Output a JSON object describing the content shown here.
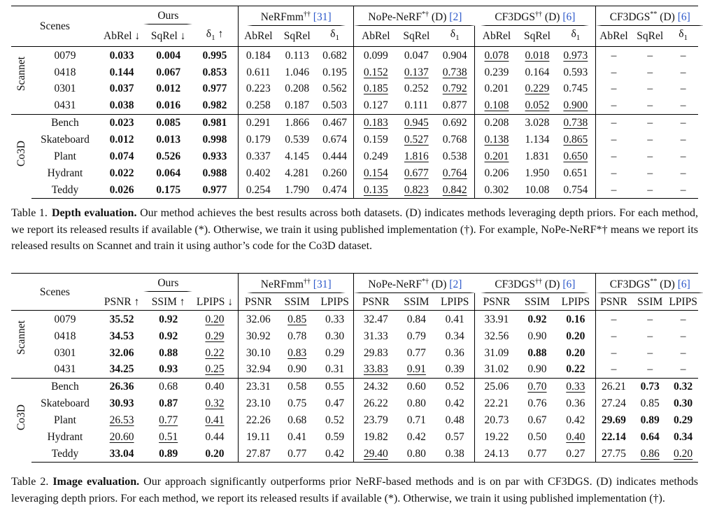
{
  "table1": {
    "scenes_header": "Scenes",
    "methods": [
      {
        "name": "Ours",
        "sup": "",
        "suffix": "",
        "ref": "",
        "bold_name": false
      },
      {
        "name": "NeRFmm",
        "sup": "††",
        "suffix": "",
        "ref": "[31]"
      },
      {
        "name": "NoPe-NeRF",
        "sup": "*†",
        "suffix": "(D)",
        "ref": "[2]"
      },
      {
        "name": "CF3DGS",
        "sup": "††",
        "suffix": "(D)",
        "ref": "[6]"
      },
      {
        "name": "CF3DGS",
        "sup": "**",
        "suffix": "(D)",
        "ref": "[6]"
      }
    ],
    "ours_metrics": [
      "AbRel ↓",
      "SqRel ↓",
      "δ1 ↑"
    ],
    "metrics": [
      "AbRel",
      "SqRel",
      "δ1"
    ],
    "groups": [
      "Scannet",
      "Co3D"
    ],
    "rows": [
      {
        "group": 0,
        "scene": "0079",
        "cells": [
          "0.033",
          "0.004",
          "0.995",
          "0.184",
          "0.113",
          "0.682",
          "0.099",
          "0.047",
          "0.904",
          "0.078",
          "0.018",
          "0.973",
          "–",
          "–",
          "–"
        ],
        "bold": [
          0,
          1,
          2
        ],
        "under": [
          9,
          10,
          11
        ]
      },
      {
        "group": 0,
        "scene": "0418",
        "cells": [
          "0.144",
          "0.067",
          "0.853",
          "0.611",
          "1.046",
          "0.195",
          "0.152",
          "0.137",
          "0.738",
          "0.239",
          "0.164",
          "0.593",
          "–",
          "–",
          "–"
        ],
        "bold": [
          0,
          1,
          2
        ],
        "under": [
          6,
          7,
          8
        ]
      },
      {
        "group": 0,
        "scene": "0301",
        "cells": [
          "0.037",
          "0.012",
          "0.977",
          "0.223",
          "0.208",
          "0.562",
          "0.185",
          "0.252",
          "0.792",
          "0.201",
          "0.229",
          "0.745",
          "–",
          "–",
          "–"
        ],
        "bold": [
          0,
          1,
          2
        ],
        "under": [
          6,
          8,
          10
        ]
      },
      {
        "group": 0,
        "scene": "0431",
        "cells": [
          "0.038",
          "0.016",
          "0.982",
          "0.258",
          "0.187",
          "0.503",
          "0.127",
          "0.111",
          "0.877",
          "0.108",
          "0.052",
          "0.900",
          "–",
          "–",
          "–"
        ],
        "bold": [
          0,
          1,
          2
        ],
        "under": [
          9,
          10,
          11
        ]
      },
      {
        "group": 1,
        "scene": "Bench",
        "cells": [
          "0.023",
          "0.085",
          "0.981",
          "0.291",
          "1.866",
          "0.467",
          "0.183",
          "0.945",
          "0.692",
          "0.208",
          "3.028",
          "0.738",
          "–",
          "–",
          "–"
        ],
        "bold": [
          0,
          1,
          2
        ],
        "under": [
          6,
          7,
          11
        ]
      },
      {
        "group": 1,
        "scene": "Skateboard",
        "cells": [
          "0.012",
          "0.013",
          "0.998",
          "0.179",
          "0.539",
          "0.674",
          "0.159",
          "0.527",
          "0.768",
          "0.138",
          "1.134",
          "0.865",
          "–",
          "–",
          "–"
        ],
        "bold": [
          0,
          1,
          2
        ],
        "under": [
          7,
          9,
          11
        ]
      },
      {
        "group": 1,
        "scene": "Plant",
        "cells": [
          "0.074",
          "0.526",
          "0.933",
          "0.337",
          "4.145",
          "0.444",
          "0.249",
          "1.816",
          "0.538",
          "0.201",
          "1.831",
          "0.650",
          "–",
          "–",
          "–"
        ],
        "bold": [
          0,
          1,
          2
        ],
        "under": [
          7,
          9,
          11
        ]
      },
      {
        "group": 1,
        "scene": "Hydrant",
        "cells": [
          "0.022",
          "0.064",
          "0.988",
          "0.402",
          "4.281",
          "0.260",
          "0.154",
          "0.677",
          "0.764",
          "0.206",
          "1.950",
          "0.651",
          "–",
          "–",
          "–"
        ],
        "bold": [
          0,
          1,
          2
        ],
        "under": [
          6,
          7,
          8
        ]
      },
      {
        "group": 1,
        "scene": "Teddy",
        "cells": [
          "0.026",
          "0.175",
          "0.977",
          "0.254",
          "1.790",
          "0.474",
          "0.135",
          "0.823",
          "0.842",
          "0.302",
          "10.08",
          "0.754",
          "–",
          "–",
          "–"
        ],
        "bold": [
          0,
          1,
          2
        ],
        "under": [
          6,
          7,
          8
        ]
      }
    ],
    "caption_label": "Table 1.",
    "caption_title": "Depth evaluation.",
    "caption_text": "Our method achieves the best results across both datasets. (D) indicates methods leveraging depth priors. For each method, we report its released results if available (*). Otherwise, we train it using published implementation (†). For example, NoPe-NeRF*† means we report its released results on Scannet and train it using author’s code for the Co3D dataset."
  },
  "table2": {
    "scenes_header": "Scenes",
    "methods": [
      {
        "name": "Ours",
        "sup": "",
        "suffix": "",
        "ref": ""
      },
      {
        "name": "NeRFmm",
        "sup": "††",
        "suffix": "",
        "ref": "[31]"
      },
      {
        "name": "NoPe-NeRF",
        "sup": "*†",
        "suffix": "(D)",
        "ref": "[2]"
      },
      {
        "name": "CF3DGS",
        "sup": "††",
        "suffix": "(D)",
        "ref": "[6]"
      },
      {
        "name": "CF3DGS",
        "sup": "**",
        "suffix": "(D)",
        "ref": "[6]"
      }
    ],
    "ours_metrics": [
      "PSNR ↑",
      "SSIM ↑",
      "LPIPS ↓"
    ],
    "metrics": [
      "PSNR",
      "SSIM",
      "LPIPS"
    ],
    "groups": [
      "Scannet",
      "Co3D"
    ],
    "rows": [
      {
        "group": 0,
        "scene": "0079",
        "cells": [
          "35.52",
          "0.92",
          "0.20",
          "32.06",
          "0.85",
          "0.33",
          "32.47",
          "0.84",
          "0.41",
          "33.91",
          "0.92",
          "0.16",
          "–",
          "–",
          "–"
        ],
        "bold": [
          0,
          1,
          10,
          11
        ],
        "under": [
          2,
          4
        ]
      },
      {
        "group": 0,
        "scene": "0418",
        "cells": [
          "34.53",
          "0.92",
          "0.29",
          "30.92",
          "0.78",
          "0.30",
          "31.33",
          "0.79",
          "0.34",
          "32.56",
          "0.90",
          "0.20",
          "–",
          "–",
          "–"
        ],
        "bold": [
          0,
          1,
          11
        ],
        "under": [
          2
        ]
      },
      {
        "group": 0,
        "scene": "0301",
        "cells": [
          "32.06",
          "0.88",
          "0.22",
          "30.10",
          "0.83",
          "0.29",
          "29.83",
          "0.77",
          "0.36",
          "31.09",
          "0.88",
          "0.20",
          "–",
          "–",
          "–"
        ],
        "bold": [
          0,
          1,
          10,
          11
        ],
        "under": [
          2,
          4
        ]
      },
      {
        "group": 0,
        "scene": "0431",
        "cells": [
          "34.25",
          "0.93",
          "0.25",
          "32.94",
          "0.90",
          "0.31",
          "33.83",
          "0.91",
          "0.39",
          "31.02",
          "0.90",
          "0.22",
          "–",
          "–",
          "–"
        ],
        "bold": [
          0,
          1,
          11
        ],
        "under": [
          2,
          6,
          7
        ]
      },
      {
        "group": 1,
        "scene": "Bench",
        "cells": [
          "26.36",
          "0.68",
          "0.40",
          "23.31",
          "0.58",
          "0.55",
          "24.32",
          "0.60",
          "0.52",
          "25.06",
          "0.70",
          "0.33",
          "26.21",
          "0.73",
          "0.32"
        ],
        "bold": [
          0,
          13,
          14
        ],
        "under": [
          10,
          11
        ]
      },
      {
        "group": 1,
        "scene": "Skateboard",
        "cells": [
          "30.93",
          "0.87",
          "0.32",
          "23.10",
          "0.75",
          "0.47",
          "26.22",
          "0.80",
          "0.42",
          "22.21",
          "0.76",
          "0.36",
          "27.24",
          "0.85",
          "0.30"
        ],
        "bold": [
          0,
          1,
          14
        ],
        "under": [
          2
        ]
      },
      {
        "group": 1,
        "scene": "Plant",
        "cells": [
          "26.53",
          "0.77",
          "0.41",
          "22.26",
          "0.68",
          "0.52",
          "23.79",
          "0.71",
          "0.48",
          "20.73",
          "0.67",
          "0.42",
          "29.69",
          "0.89",
          "0.29"
        ],
        "bold": [
          12,
          13,
          14
        ],
        "under": [
          0,
          1,
          2
        ]
      },
      {
        "group": 1,
        "scene": "Hydrant",
        "cells": [
          "20.60",
          "0.51",
          "0.44",
          "19.11",
          "0.41",
          "0.59",
          "19.82",
          "0.42",
          "0.57",
          "19.22",
          "0.50",
          "0.40",
          "22.14",
          "0.64",
          "0.34"
        ],
        "bold": [
          12,
          13,
          14
        ],
        "under": [
          0,
          1,
          11
        ]
      },
      {
        "group": 1,
        "scene": "Teddy",
        "cells": [
          "33.04",
          "0.89",
          "0.20",
          "27.87",
          "0.77",
          "0.42",
          "29.40",
          "0.80",
          "0.38",
          "24.13",
          "0.77",
          "0.27",
          "27.75",
          "0.86",
          "0.20"
        ],
        "bold": [
          0,
          1,
          2
        ],
        "under": [
          6,
          13,
          14
        ]
      }
    ],
    "caption_label": "Table 2.",
    "caption_title": "Image evaluation.",
    "caption_text": "Our approach significantly outperforms prior NeRF-based methods and is on par with CF3DGS. (D) indicates methods leveraging depth priors. For each method, we report its released results if available (*). Otherwise, we train it using published implementation (†)."
  },
  "colors": {
    "ref_link": "#2b57c9",
    "text": "#111111"
  }
}
